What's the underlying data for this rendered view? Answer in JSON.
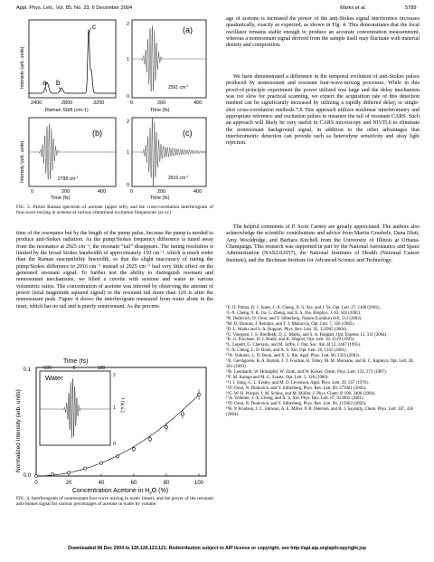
{
  "header": {
    "left": "Appl. Phys. Lett., Vol. 85, No. 23, 6 December 2004",
    "right_author": "Marks et al.",
    "right_page": "5789"
  },
  "fig3": {
    "panel_a": "(a)",
    "panel_b": "(b)",
    "panel_c": "(c)",
    "label_a": "a",
    "label_b": "b",
    "label_c": "c",
    "spec_ylabel": "Intensity (arb. units)",
    "spec_xlabel": "Raman Shift (cm-1)",
    "spec_ticks": [
      "2400",
      "2800",
      "3200"
    ],
    "time_label": "Time (fs)",
    "time_ticks_a": [
      "0",
      "200",
      "400"
    ],
    "time_ticks_bc": [
      "0",
      "200",
      "400"
    ],
    "b_ylabel": "Intensity (arb. units)",
    "a_ann": "2591 cm",
    "b_ann": "2798 cm",
    "c_ann": "2916 cm",
    "sup": "-1",
    "y_ticks_top": [
      "2",
      "1",
      "0"
    ],
    "y_ticks_bot": [
      "2",
      "1",
      "0"
    ],
    "caption": "FIG. 3. Partial Raman spectrum of acetone (upper left), and the cross-correlation interferogram of four-wave mixing in acetone at various vibrational excitation frequencies (a)–(c)."
  },
  "left_text": "time of the resonance but by the length of the pump pulse, because the pump is needed to produce anti-Stokes radiation. As the pump/Stokes frequency difference is tuned away from the resonance at 2925 cm⁻¹, the resonant “tail” disappears. The tuning resolution is limited by the broad Stokes bandwidth of approximately 150 cm⁻¹, which is much wider than the Raman susceptibility linewidth, so that the slight inaccuracy of tuning the pump/Stokes difference to 2916 cm⁻¹ instead of 2925 cm⁻¹ had very little effect on the generated resonant signal. To further test the ability to distinguish resonant and nonresonant mechanisms, we filled a cuvette with acetone and water in various volumetric ratios. The concentration of acetone was inferred by observing the amount of power (total magnitude squared signal) in the resonant tail more than 120 fs after the nonresonant peak. Figure 4 shows the interferogram measured from water alone in the inset, which has no tail and is purely nonresonant. As the percent-",
  "fig4": {
    "time_label": "Time (fs)",
    "inset_ticks": [
      "-100",
      "0",
      "100"
    ],
    "water": "Water",
    "inset_ylabel": "I (a.u.)",
    "inset_y": [
      "2",
      "1",
      "0"
    ],
    "ylabel": "Normalized Intensity (arb. units)",
    "y_top": "0.1",
    "y_bot": "0.0",
    "xlabel": "Concentration Acetone in H",
    "xlabel_sub": "2",
    "xlabel_end": "O (%)",
    "x_ticks": [
      "0",
      "20",
      "40",
      "60",
      "80",
      "100"
    ],
    "caption": "FIG. 4. Interferogram of nonresonant four-wave mixing in water (inset), and the power of the resonant anti-Stokes signal for various percentages of acetone in water by volume."
  },
  "chart_data": {
    "type": "scatter",
    "title": "",
    "xlabel": "Concentration Acetone in H2O (%)",
    "ylabel": "Normalized Intensity (arb. units)",
    "xlim": [
      0,
      105
    ],
    "ylim": [
      0,
      0.1
    ],
    "x": [
      0,
      10,
      20,
      30,
      40,
      50,
      60,
      70,
      80,
      90,
      100
    ],
    "y": [
      0.0,
      0.0015,
      0.003,
      0.007,
      0.012,
      0.018,
      0.025,
      0.034,
      0.045,
      0.057,
      0.075
    ],
    "error": [
      0.001,
      0.001,
      0.001,
      0.0015,
      0.002,
      0.002,
      0.0025,
      0.003,
      0.004,
      0.004,
      0.005
    ]
  },
  "right_text_1": "age of acetone is increased the power of the anti-Stokes signal interference increases quadratically, exactly as expected, as shown in Fig. 4. This demonstrates that the local oscillator remains stable enough to produce an accurate concentration measurement, whereas a nonresonant signal derived from the sample itself may fluctuate with material density and composition.",
  "right_text_2": "We have demonstrated a difference in the temporal evolution of anti-Stokes pulses produced by nonresonant and resonant four-wave-mixing processes. While in this proof-of-principle experiment the power utilized was large and the delay mechanism was too slow for practical scanning, we expect the acquisition rate of this detection method can be significantly increased by utilizing a rapidly dithered delay, or single-shot cross-correlation methods.7,8 This approach utilizes nonlinear interferometry and appropriate reference and excitation pulses to measure the tail of resonant CARS. Such an approach will likely be very useful in CARS microscopy and NIVI5,6 to eliminate the nonresonant background signal, in addition to the other advantages that interferometric detection can provide such as heterodyne sensitivity and stray light rejection.",
  "right_text_3": "The helpful comments of P. Scott Carney are greatly appreciated. The authors also acknowledge the scientific contributions and advice from Martin Gruebele, Dana Dlott, Amy Wooldridge, and Barbara Kitchell from the University of Illinois at Urbana-Champaign. This research was supported in part by the National Aeronautics and Space Administration (NAS2-02057), the National Institutes of Health (National Cancer Institute), and the Beckman Institute for Advanced Science and Technology.",
  "references": [
    "¹E. O. Potma, D. J. Jones, J.-X. Cheng, X. S. Xie, and J. Ye, Opt. Lett. 27, 1168 (2002).",
    "²J.-X. Cheng, Y. K. Jia, G. Zheng, and X. S. Xie, Biophys. J. 83, 502 (2002).",
    "³N. Dudovich, D. Oron, and Y. Silberberg, Nature (London) 418, 512 (2002).",
    "⁴M. D. Duncan, J. Reintjes, and T. J. Manuccia, Opt. Lett. 7, 350 (1982).",
    "⁵D. L. Marks and S. A. Boppart, Phys. Rev. Lett. 92, 123905 (2004).",
    "⁶C. Vinegoni, J. S. Bredfeldt, D. L. Marks, and S. A. Boppart, Opt. Express 12, 331 (2004).",
    "⁷K. G. Purchase, D. J. Brady, and K. Wagner, Opt. Lett. 18, 2129 (1993).",
    "⁸L. Lepetit, G. Cheriaux, and M. Joffre, J. Opt. Soc. Am. B 12, 2467 (1995).",
    "⁹J.-X. Cheng, L. D. Book, and X. S. Xie, Opt. Lett. 26, 1341 (2001).",
    "¹⁰A. Volkmer, L. D. Book, and X. S. Xie, Appl. Phys. Lett. 80, 1505 (2002).",
    "¹¹E. Gershgoren, R. A. Bartels, J. T. Fourkas, R. Tobey, M. M. Murnane, and H. C. Kapteyn, Opt. Lett. 28, 361 (2003).",
    "¹²R. Leonhardt, W. Holzapfel, W. Zinth, and W. Kaiser, Chem. Phys. Lett. 133, 373 (1987).",
    "¹³F. M. Kamga and M. G. Sceats, Opt. Lett. 5, 126 (1980).",
    "¹⁴J. J. Song, G. L. Eesley, and M. D. Levenson, Appl. Phys. Lett. 29, 567 (1976).",
    "¹⁵D. Oron, N. Dudovich, and Y. Silberberg, Phys. Rev. Lett. 89, 273001 (2002).",
    "¹⁶G. W. H. Wurpel, J. M. Schins, and M. Müller, J. Phys. Chem. B 108, 3400 (2004).",
    "¹⁷A. Volkmer, J.-X. Cheng, and X. S. Xie, Phys. Rev. Lett. 87, 023901 (2001).",
    "¹⁸D. Oron, N. Dudovich, and Y. Silberberg, Phys. Rev. Lett. 90, 213902 (2003).",
    "¹⁹K. P. Knutsen, J. C. Johnson, A. E. Miller, P. B. Petersen, and R. J. Saykally, Chem. Phys. Lett. 387, 436 (2004)."
  ],
  "footer": "Downloaded 08 Dec 2004 to 130.126.123.121. Redistribution subject to AIP license or copyright, see http://apl.aip.org/apl/copyright.jsp"
}
